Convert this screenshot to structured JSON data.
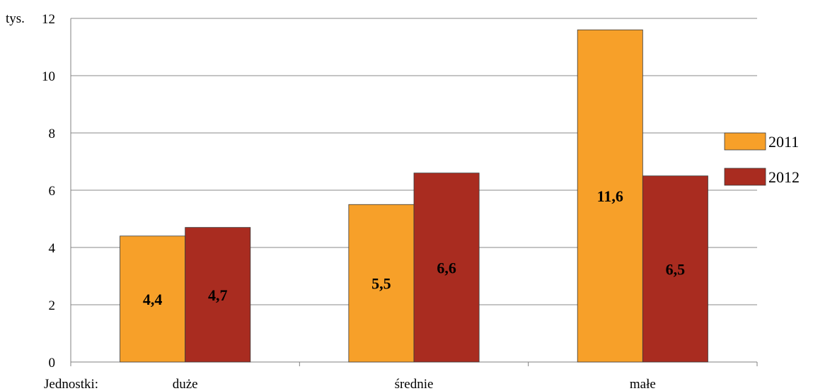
{
  "chart_data": {
    "type": "bar",
    "categories": [
      "duże",
      "średnie",
      "małe"
    ],
    "category_axis_caption": "Jednostki:",
    "y_unit": "tys.",
    "ylim": [
      0,
      12
    ],
    "yticks": [
      "0",
      "2",
      "4",
      "6",
      "8",
      "10",
      "12"
    ],
    "grid": true,
    "legend_position": "right",
    "series": [
      {
        "name": "2011",
        "values": [
          4.4,
          5.5,
          11.6
        ],
        "labels": [
          "4,4",
          "5,5",
          "11,6"
        ],
        "color": "#F7A029"
      },
      {
        "name": "2012",
        "values": [
          4.7,
          6.6,
          6.5
        ],
        "labels": [
          "4,7",
          "6,6",
          "6,5"
        ],
        "color": "#A92C20"
      }
    ]
  }
}
